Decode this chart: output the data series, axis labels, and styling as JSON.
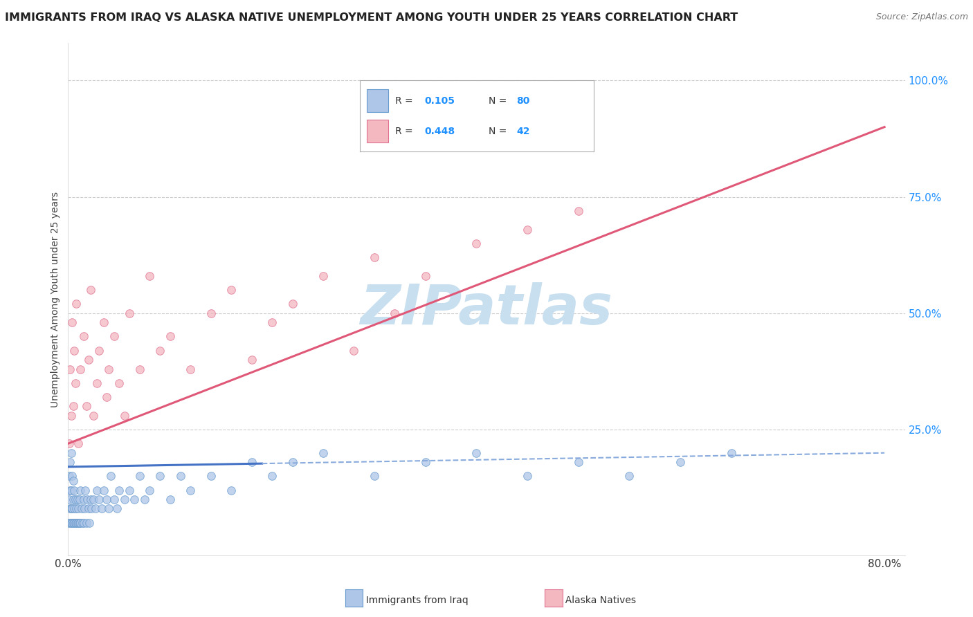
{
  "title": "IMMIGRANTS FROM IRAQ VS ALASKA NATIVE UNEMPLOYMENT AMONG YOUTH UNDER 25 YEARS CORRELATION CHART",
  "source": "Source: ZipAtlas.com",
  "ylabel": "Unemployment Among Youth under 25 years",
  "xlim": [
    0.0,
    0.82
  ],
  "ylim": [
    -0.02,
    1.08
  ],
  "yticks_right": [
    0.25,
    0.5,
    0.75,
    1.0
  ],
  "ytick_right_labels": [
    "25.0%",
    "50.0%",
    "75.0%",
    "100.0%"
  ],
  "watermark": "ZIPatlas",
  "watermark_color": "#c8dff0",
  "background_color": "#ffffff",
  "grid_color": "#cccccc",
  "title_fontsize": 11.5,
  "marker_size": 70,
  "blue_scatter_x": [
    0.0005,
    0.001,
    0.001,
    0.0015,
    0.002,
    0.002,
    0.002,
    0.003,
    0.003,
    0.003,
    0.003,
    0.004,
    0.004,
    0.004,
    0.005,
    0.005,
    0.005,
    0.006,
    0.006,
    0.006,
    0.007,
    0.007,
    0.008,
    0.008,
    0.009,
    0.009,
    0.01,
    0.01,
    0.011,
    0.011,
    0.012,
    0.012,
    0.013,
    0.014,
    0.015,
    0.015,
    0.016,
    0.017,
    0.018,
    0.019,
    0.02,
    0.021,
    0.022,
    0.023,
    0.025,
    0.027,
    0.028,
    0.03,
    0.033,
    0.035,
    0.038,
    0.04,
    0.042,
    0.045,
    0.048,
    0.05,
    0.055,
    0.06,
    0.065,
    0.07,
    0.075,
    0.08,
    0.09,
    0.1,
    0.11,
    0.12,
    0.14,
    0.16,
    0.18,
    0.2,
    0.22,
    0.25,
    0.3,
    0.35,
    0.4,
    0.45,
    0.5,
    0.55,
    0.6,
    0.65
  ],
  "blue_scatter_y": [
    0.05,
    0.1,
    0.15,
    0.08,
    0.05,
    0.12,
    0.18,
    0.05,
    0.08,
    0.12,
    0.2,
    0.05,
    0.08,
    0.15,
    0.05,
    0.1,
    0.14,
    0.05,
    0.08,
    0.12,
    0.05,
    0.1,
    0.05,
    0.08,
    0.05,
    0.1,
    0.05,
    0.08,
    0.05,
    0.1,
    0.05,
    0.12,
    0.08,
    0.05,
    0.05,
    0.1,
    0.08,
    0.12,
    0.05,
    0.1,
    0.08,
    0.05,
    0.1,
    0.08,
    0.1,
    0.08,
    0.12,
    0.1,
    0.08,
    0.12,
    0.1,
    0.08,
    0.15,
    0.1,
    0.08,
    0.12,
    0.1,
    0.12,
    0.1,
    0.15,
    0.1,
    0.12,
    0.15,
    0.1,
    0.15,
    0.12,
    0.15,
    0.12,
    0.18,
    0.15,
    0.18,
    0.2,
    0.15,
    0.18,
    0.2,
    0.15,
    0.18,
    0.15,
    0.18,
    0.2
  ],
  "pink_scatter_x": [
    0.001,
    0.002,
    0.003,
    0.004,
    0.005,
    0.006,
    0.007,
    0.008,
    0.01,
    0.012,
    0.015,
    0.018,
    0.02,
    0.022,
    0.025,
    0.028,
    0.03,
    0.035,
    0.038,
    0.04,
    0.045,
    0.05,
    0.055,
    0.06,
    0.07,
    0.08,
    0.09,
    0.1,
    0.12,
    0.14,
    0.16,
    0.18,
    0.2,
    0.22,
    0.25,
    0.28,
    0.3,
    0.32,
    0.35,
    0.4,
    0.45,
    0.5
  ],
  "pink_scatter_y": [
    0.22,
    0.38,
    0.28,
    0.48,
    0.3,
    0.42,
    0.35,
    0.52,
    0.22,
    0.38,
    0.45,
    0.3,
    0.4,
    0.55,
    0.28,
    0.35,
    0.42,
    0.48,
    0.32,
    0.38,
    0.45,
    0.35,
    0.28,
    0.5,
    0.38,
    0.58,
    0.42,
    0.45,
    0.38,
    0.5,
    0.55,
    0.4,
    0.48,
    0.52,
    0.58,
    0.42,
    0.62,
    0.5,
    0.58,
    0.65,
    0.68,
    0.72
  ],
  "blue_line_color": "#4472c4",
  "pink_line_color": "#e05878",
  "blue_scatter_color": "#aec6e8",
  "blue_scatter_edge": "#6699cc",
  "pink_scatter_color": "#f4b8c1",
  "pink_scatter_edge": "#e07090",
  "blue_R": 0.105,
  "blue_N": 80,
  "pink_R": 0.448,
  "pink_N": 42
}
